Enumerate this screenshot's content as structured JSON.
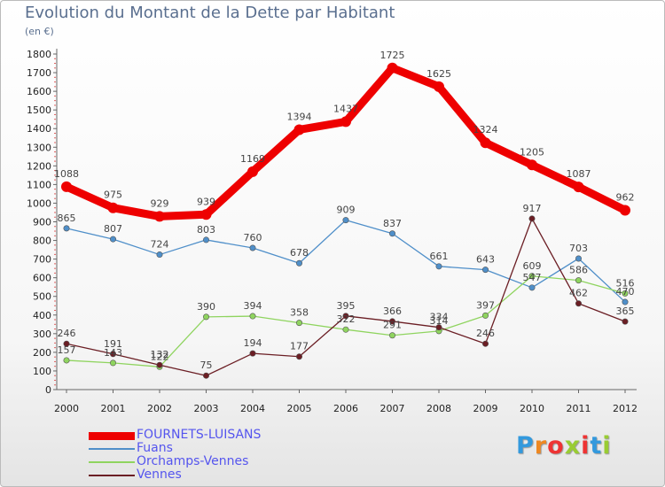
{
  "chart_data": {
    "type": "line",
    "title": "Evolution du Montant de la Dette par Habitant",
    "unit_label": "(en €)",
    "x": [
      "2000",
      "2001",
      "2002",
      "2003",
      "2004",
      "2005",
      "2006",
      "2007",
      "2008",
      "2009",
      "2010",
      "2011",
      "2012"
    ],
    "y_ticks": [
      "0",
      "100",
      "200",
      "300",
      "400",
      "500",
      "600",
      "700",
      "800",
      "900",
      "1000",
      "1100",
      "1200",
      "1300",
      "1400",
      "1500",
      "1600",
      "1700",
      "1800"
    ],
    "ylim": [
      0,
      1800
    ],
    "grid": false,
    "legend_position": "bottom-left",
    "series": [
      {
        "name": "FOURNETS-LUISANS",
        "color": "#ee0000",
        "values": [
          1088,
          975,
          929,
          939,
          1169,
          1394,
          1437,
          1725,
          1625,
          1324,
          1205,
          1087,
          962
        ],
        "labels": [
          "1088",
          "975",
          "929",
          "939",
          "1169",
          "1394",
          "1437",
          "1725",
          "1625",
          "1324",
          "1205",
          "1087",
          "962"
        ]
      },
      {
        "name": "Fuans",
        "color": "#4f8fc9",
        "values": [
          865,
          807,
          724,
          803,
          760,
          678,
          909,
          837,
          661,
          643,
          547,
          703,
          470
        ],
        "labels": [
          "865",
          "807",
          "724",
          "803",
          "760",
          "678",
          "909",
          "837",
          "661",
          "643",
          "547",
          "703",
          "470"
        ]
      },
      {
        "name": "Orchamps-Vennes",
        "color": "#8fd45f",
        "values": [
          157,
          143,
          122,
          390,
          394,
          358,
          322,
          291,
          314,
          397,
          609,
          586,
          516
        ],
        "labels": [
          "157",
          "143",
          "122",
          "390",
          "394",
          "358",
          "322",
          "291",
          "314",
          "397",
          "609",
          "586",
          "516"
        ]
      },
      {
        "name": "Vennes",
        "color": "#6b1e24",
        "values": [
          246,
          191,
          132,
          75,
          194,
          177,
          395,
          366,
          334,
          246,
          917,
          462,
          365
        ],
        "labels": [
          "246",
          "191",
          "132",
          "75",
          "194",
          "177",
          "395",
          "366",
          "334",
          "246",
          "917",
          "462",
          "365"
        ]
      }
    ]
  },
  "brand": {
    "letters": [
      "P",
      "r",
      "o",
      "x",
      "i",
      "t",
      "i"
    ],
    "colors": [
      "#3399dd",
      "#ee8822",
      "#ee3333",
      "#99cc33",
      "#ee3333",
      "#3399dd",
      "#99cc33"
    ]
  }
}
